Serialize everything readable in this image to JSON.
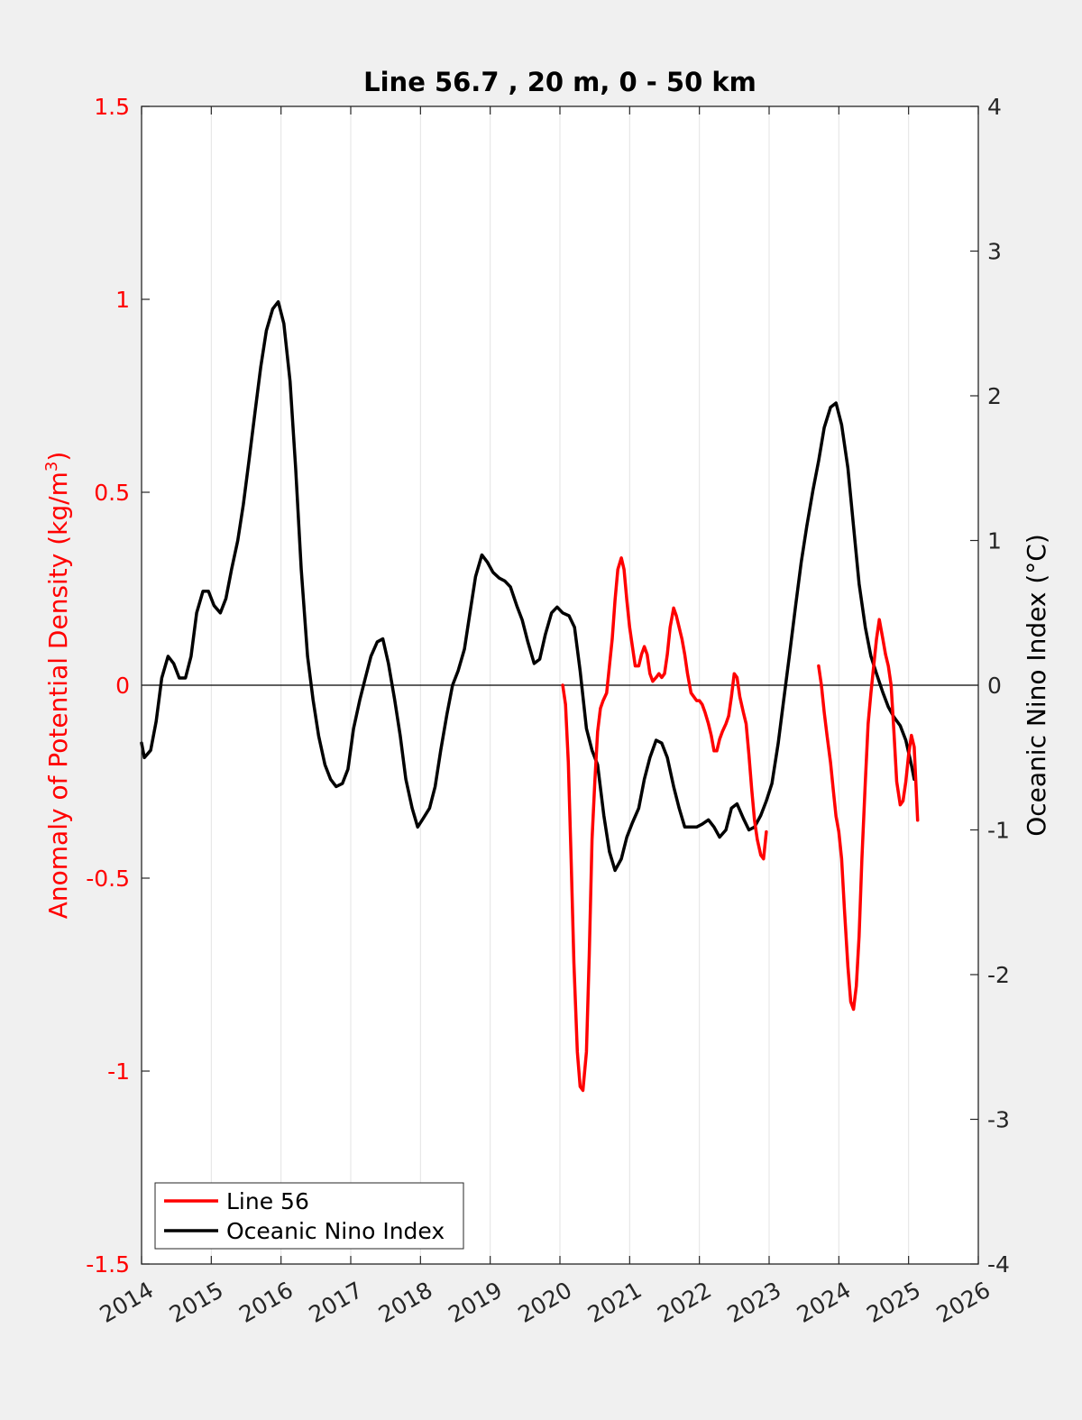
{
  "chart_data": {
    "type": "line",
    "title": "Line 56.7 , 20 m, 0 - 50 km",
    "x_range": [
      2014,
      2026
    ],
    "x_ticks": [
      "2014",
      "2015",
      "2016",
      "2017",
      "2018",
      "2019",
      "2020",
      "2021",
      "2022",
      "2023",
      "2024",
      "2025",
      "2026"
    ],
    "grid": true,
    "legend_placement": "bottom-left",
    "left_axis": {
      "label_main": "Anomaly of Potential Density (kg/m",
      "label_sup": "3",
      "label_close": ")",
      "color": "#ff0000",
      "range": [
        -1.5,
        1.5
      ],
      "ticks": [
        "1.5",
        "1",
        "0.5",
        "0",
        "-0.5",
        "-1",
        "-1.5"
      ]
    },
    "right_axis": {
      "label": "Oceanic Nino Index (°C)",
      "color": "#000000",
      "range": [
        -4,
        4
      ],
      "ticks": [
        "4",
        "3",
        "2",
        "1",
        "0",
        "-1",
        "-2",
        "-3",
        "-4"
      ]
    },
    "series": [
      {
        "name": "Line 56",
        "axis": "left",
        "color": "#ff0000",
        "segments": [
          [
            [
              2020.04,
              0.0
            ],
            [
              2020.08,
              -0.05
            ],
            [
              2020.12,
              -0.2
            ],
            [
              2020.16,
              -0.45
            ],
            [
              2020.2,
              -0.72
            ],
            [
              2020.25,
              -0.95
            ],
            [
              2020.29,
              -1.04
            ],
            [
              2020.33,
              -1.05
            ],
            [
              2020.38,
              -0.95
            ],
            [
              2020.42,
              -0.7
            ],
            [
              2020.46,
              -0.4
            ],
            [
              2020.5,
              -0.25
            ],
            [
              2020.54,
              -0.12
            ],
            [
              2020.58,
              -0.06
            ],
            [
              2020.62,
              -0.04
            ],
            [
              2020.67,
              -0.02
            ],
            [
              2020.71,
              0.05
            ],
            [
              2020.75,
              0.12
            ],
            [
              2020.79,
              0.22
            ],
            [
              2020.83,
              0.3
            ],
            [
              2020.88,
              0.33
            ],
            [
              2020.92,
              0.3
            ],
            [
              2020.96,
              0.22
            ],
            [
              2021.0,
              0.15
            ],
            [
              2021.04,
              0.1
            ],
            [
              2021.08,
              0.05
            ],
            [
              2021.13,
              0.05
            ],
            [
              2021.17,
              0.08
            ],
            [
              2021.21,
              0.1
            ],
            [
              2021.25,
              0.08
            ],
            [
              2021.29,
              0.03
            ],
            [
              2021.33,
              0.01
            ],
            [
              2021.38,
              0.02
            ],
            [
              2021.42,
              0.03
            ],
            [
              2021.46,
              0.02
            ],
            [
              2021.5,
              0.03
            ],
            [
              2021.54,
              0.08
            ],
            [
              2021.58,
              0.15
            ],
            [
              2021.63,
              0.2
            ],
            [
              2021.67,
              0.18
            ],
            [
              2021.71,
              0.15
            ],
            [
              2021.75,
              0.12
            ],
            [
              2021.79,
              0.08
            ],
            [
              2021.83,
              0.03
            ],
            [
              2021.88,
              -0.02
            ],
            [
              2021.92,
              -0.03
            ],
            [
              2021.96,
              -0.04
            ],
            [
              2022.0,
              -0.04
            ],
            [
              2022.04,
              -0.05
            ],
            [
              2022.08,
              -0.07
            ],
            [
              2022.13,
              -0.1
            ],
            [
              2022.17,
              -0.13
            ],
            [
              2022.21,
              -0.17
            ],
            [
              2022.25,
              -0.17
            ],
            [
              2022.29,
              -0.14
            ],
            [
              2022.33,
              -0.12
            ],
            [
              2022.38,
              -0.1
            ],
            [
              2022.42,
              -0.08
            ],
            [
              2022.46,
              -0.03
            ],
            [
              2022.5,
              0.03
            ],
            [
              2022.54,
              0.02
            ],
            [
              2022.58,
              -0.03
            ],
            [
              2022.63,
              -0.07
            ],
            [
              2022.67,
              -0.1
            ],
            [
              2022.71,
              -0.18
            ],
            [
              2022.75,
              -0.27
            ],
            [
              2022.79,
              -0.35
            ],
            [
              2022.83,
              -0.4
            ],
            [
              2022.88,
              -0.44
            ],
            [
              2022.92,
              -0.45
            ],
            [
              2022.96,
              -0.38
            ]
          ],
          [
            [
              2023.71,
              0.05
            ],
            [
              2023.75,
              0.0
            ],
            [
              2023.79,
              -0.07
            ],
            [
              2023.83,
              -0.13
            ],
            [
              2023.88,
              -0.2
            ],
            [
              2023.92,
              -0.27
            ],
            [
              2023.96,
              -0.34
            ],
            [
              2024.0,
              -0.38
            ],
            [
              2024.04,
              -0.45
            ],
            [
              2024.08,
              -0.58
            ],
            [
              2024.13,
              -0.73
            ],
            [
              2024.17,
              -0.82
            ],
            [
              2024.21,
              -0.84
            ],
            [
              2024.25,
              -0.78
            ],
            [
              2024.29,
              -0.65
            ],
            [
              2024.33,
              -0.45
            ],
            [
              2024.38,
              -0.25
            ],
            [
              2024.42,
              -0.1
            ],
            [
              2024.46,
              -0.02
            ],
            [
              2024.5,
              0.05
            ],
            [
              2024.54,
              0.12
            ],
            [
              2024.58,
              0.17
            ],
            [
              2024.63,
              0.12
            ],
            [
              2024.67,
              0.08
            ],
            [
              2024.71,
              0.05
            ],
            [
              2024.75,
              0.0
            ],
            [
              2024.79,
              -0.12
            ],
            [
              2024.83,
              -0.25
            ],
            [
              2024.88,
              -0.31
            ],
            [
              2024.92,
              -0.3
            ],
            [
              2024.96,
              -0.25
            ],
            [
              2025.0,
              -0.18
            ],
            [
              2025.04,
              -0.13
            ],
            [
              2025.08,
              -0.16
            ],
            [
              2025.13,
              -0.35
            ]
          ]
        ]
      },
      {
        "name": "Oceanic Nino Index",
        "axis": "right",
        "color": "#000000",
        "segments": [
          [
            [
              2014.0,
              -0.4
            ],
            [
              2014.04,
              -0.5
            ],
            [
              2014.13,
              -0.45
            ],
            [
              2014.21,
              -0.25
            ],
            [
              2014.29,
              0.05
            ],
            [
              2014.38,
              0.2
            ],
            [
              2014.46,
              0.15
            ],
            [
              2014.54,
              0.05
            ],
            [
              2014.63,
              0.05
            ],
            [
              2014.71,
              0.2
            ],
            [
              2014.79,
              0.5
            ],
            [
              2014.88,
              0.65
            ],
            [
              2014.96,
              0.65
            ],
            [
              2015.04,
              0.55
            ],
            [
              2015.13,
              0.5
            ],
            [
              2015.21,
              0.6
            ],
            [
              2015.29,
              0.8
            ],
            [
              2015.38,
              1.0
            ],
            [
              2015.46,
              1.25
            ],
            [
              2015.54,
              1.55
            ],
            [
              2015.63,
              1.9
            ],
            [
              2015.71,
              2.2
            ],
            [
              2015.79,
              2.45
            ],
            [
              2015.88,
              2.6
            ],
            [
              2015.96,
              2.65
            ],
            [
              2016.04,
              2.5
            ],
            [
              2016.13,
              2.1
            ],
            [
              2016.21,
              1.5
            ],
            [
              2016.29,
              0.8
            ],
            [
              2016.38,
              0.2
            ],
            [
              2016.46,
              -0.1
            ],
            [
              2016.54,
              -0.35
            ],
            [
              2016.63,
              -0.55
            ],
            [
              2016.71,
              -0.65
            ],
            [
              2016.79,
              -0.7
            ],
            [
              2016.88,
              -0.68
            ],
            [
              2016.96,
              -0.58
            ],
            [
              2017.04,
              -0.3
            ],
            [
              2017.13,
              -0.1
            ],
            [
              2017.21,
              0.05
            ],
            [
              2017.29,
              0.2
            ],
            [
              2017.38,
              0.3
            ],
            [
              2017.46,
              0.32
            ],
            [
              2017.54,
              0.15
            ],
            [
              2017.63,
              -0.1
            ],
            [
              2017.71,
              -0.35
            ],
            [
              2017.79,
              -0.65
            ],
            [
              2017.88,
              -0.85
            ],
            [
              2017.96,
              -0.98
            ],
            [
              2018.04,
              -0.92
            ],
            [
              2018.13,
              -0.85
            ],
            [
              2018.21,
              -0.7
            ],
            [
              2018.29,
              -0.45
            ],
            [
              2018.38,
              -0.2
            ],
            [
              2018.46,
              0.0
            ],
            [
              2018.54,
              0.1
            ],
            [
              2018.63,
              0.25
            ],
            [
              2018.71,
              0.5
            ],
            [
              2018.79,
              0.75
            ],
            [
              2018.88,
              0.9
            ],
            [
              2018.96,
              0.85
            ],
            [
              2019.04,
              0.78
            ],
            [
              2019.13,
              0.74
            ],
            [
              2019.21,
              0.72
            ],
            [
              2019.29,
              0.68
            ],
            [
              2019.38,
              0.55
            ],
            [
              2019.46,
              0.45
            ],
            [
              2019.54,
              0.3
            ],
            [
              2019.63,
              0.15
            ],
            [
              2019.71,
              0.18
            ],
            [
              2019.79,
              0.35
            ],
            [
              2019.88,
              0.5
            ],
            [
              2019.96,
              0.54
            ],
            [
              2020.04,
              0.5
            ],
            [
              2020.13,
              0.48
            ],
            [
              2020.21,
              0.4
            ],
            [
              2020.29,
              0.1
            ],
            [
              2020.38,
              -0.3
            ],
            [
              2020.46,
              -0.45
            ],
            [
              2020.54,
              -0.55
            ],
            [
              2020.63,
              -0.9
            ],
            [
              2020.71,
              -1.15
            ],
            [
              2020.79,
              -1.28
            ],
            [
              2020.88,
              -1.2
            ],
            [
              2020.96,
              -1.05
            ],
            [
              2021.04,
              -0.95
            ],
            [
              2021.13,
              -0.85
            ],
            [
              2021.21,
              -0.65
            ],
            [
              2021.29,
              -0.5
            ],
            [
              2021.38,
              -0.38
            ],
            [
              2021.46,
              -0.4
            ],
            [
              2021.54,
              -0.5
            ],
            [
              2021.63,
              -0.7
            ],
            [
              2021.71,
              -0.85
            ],
            [
              2021.79,
              -0.98
            ],
            [
              2021.88,
              -0.98
            ],
            [
              2021.96,
              -0.98
            ],
            [
              2022.04,
              -0.96
            ],
            [
              2022.13,
              -0.93
            ],
            [
              2022.21,
              -0.98
            ],
            [
              2022.29,
              -1.05
            ],
            [
              2022.38,
              -1.0
            ],
            [
              2022.46,
              -0.85
            ],
            [
              2022.54,
              -0.82
            ],
            [
              2022.63,
              -0.92
            ],
            [
              2022.71,
              -1.0
            ],
            [
              2022.79,
              -0.98
            ],
            [
              2022.88,
              -0.9
            ],
            [
              2022.96,
              -0.8
            ],
            [
              2023.04,
              -0.68
            ],
            [
              2023.13,
              -0.4
            ],
            [
              2023.21,
              -0.1
            ],
            [
              2023.29,
              0.2
            ],
            [
              2023.38,
              0.55
            ],
            [
              2023.46,
              0.85
            ],
            [
              2023.54,
              1.1
            ],
            [
              2023.63,
              1.35
            ],
            [
              2023.71,
              1.55
            ],
            [
              2023.79,
              1.78
            ],
            [
              2023.88,
              1.92
            ],
            [
              2023.96,
              1.95
            ],
            [
              2024.04,
              1.8
            ],
            [
              2024.13,
              1.5
            ],
            [
              2024.21,
              1.1
            ],
            [
              2024.29,
              0.7
            ],
            [
              2024.38,
              0.4
            ],
            [
              2024.46,
              0.2
            ],
            [
              2024.54,
              0.08
            ],
            [
              2024.63,
              -0.05
            ],
            [
              2024.71,
              -0.15
            ],
            [
              2024.79,
              -0.22
            ],
            [
              2024.88,
              -0.28
            ],
            [
              2024.96,
              -0.38
            ],
            [
              2025.04,
              -0.55
            ],
            [
              2025.08,
              -0.65
            ]
          ]
        ]
      }
    ]
  }
}
